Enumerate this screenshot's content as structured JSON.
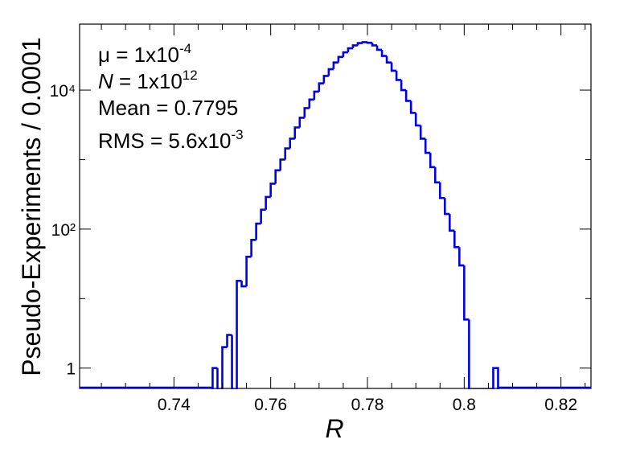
{
  "chart_data": {
    "type": "histogram",
    "xlabel": "R",
    "ylabel": "Pseudo-Experiments / 0.0001",
    "annotations": [
      {
        "text": "μ = 1x10",
        "sup": "-4"
      },
      {
        "symbol": "N",
        "text": " = 1x10",
        "sup": "12"
      },
      {
        "text": "Mean = 0.7795"
      },
      {
        "text": "RMS = 5.6x10",
        "sup": "-3"
      }
    ],
    "color": "#0000e6",
    "log_y": true,
    "bins": [
      0.748,
      0.749,
      0.75,
      0.751,
      0.752,
      0.753,
      0.754,
      0.755,
      0.756,
      0.757,
      0.758,
      0.759,
      0.76,
      0.761,
      0.762,
      0.763,
      0.764,
      0.765,
      0.766,
      0.767,
      0.768,
      0.769,
      0.77,
      0.771,
      0.772,
      0.773,
      0.774,
      0.775,
      0.776,
      0.777,
      0.778,
      0.779,
      0.78,
      0.781,
      0.782,
      0.783,
      0.784,
      0.785,
      0.786,
      0.787,
      0.788,
      0.789,
      0.79,
      0.791,
      0.792,
      0.793,
      0.794,
      0.795,
      0.796,
      0.797,
      0.798,
      0.799,
      0.8,
      0.801,
      0.802,
      0.803,
      0.804,
      0.805,
      0.806,
      0.807
    ],
    "values": [
      1,
      0,
      2,
      3,
      0,
      18,
      15,
      40,
      70,
      120,
      190,
      290,
      450,
      700,
      1000,
      1450,
      2000,
      2900,
      4000,
      5500,
      7300,
      9500,
      12500,
      16000,
      20000,
      25000,
      30000,
      35000,
      40000,
      44000,
      47500,
      49000,
      48000,
      44000,
      38000,
      31000,
      25000,
      19000,
      14000,
      10000,
      7000,
      4700,
      3100,
      2000,
      1250,
      780,
      470,
      280,
      165,
      95,
      55,
      30,
      5,
      0,
      0,
      0,
      0,
      0,
      1
    ],
    "xlim": [
      0.7205,
      0.8262
    ],
    "xticks": [
      0.74,
      0.76,
      0.78,
      0.8,
      0.82
    ],
    "xminor": [
      0.725,
      0.73,
      0.735,
      0.745,
      0.75,
      0.755,
      0.765,
      0.77,
      0.775,
      0.785,
      0.79,
      0.795,
      0.805,
      0.81,
      0.815,
      0.825
    ],
    "ylim": [
      0.51,
      89000
    ],
    "yticks": [
      1,
      {
        "value": 100,
        "label": "10²"
      },
      {
        "value": 10000,
        "label": "10⁴"
      }
    ],
    "yminor": [
      10,
      1000
    ]
  }
}
